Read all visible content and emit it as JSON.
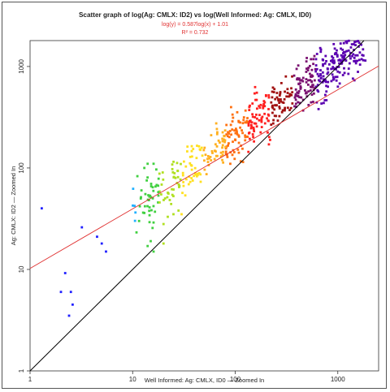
{
  "chart_data": {
    "type": "scatter",
    "title": "Scatter graph of log(Ag: CMLX: ID2) vs log(Well Informed: Ag: CMLX, ID0)",
    "xlabel": "Well Informed: Ag: CMLX, ID0 — Zoomed In",
    "ylabel": "Ag: CMLX: ID2 — Zoomed In",
    "x_scale": "log",
    "y_scale": "log",
    "xlim": [
      1,
      2500
    ],
    "ylim": [
      1,
      1800
    ],
    "x_ticks": [
      "1",
      "10",
      "100",
      "1000"
    ],
    "y_ticks": [
      "1",
      "10",
      "100",
      "1000"
    ],
    "grid": false,
    "regression": {
      "equation": "log(y) = 0.587log(x) + 1.01",
      "r_squared": "R² = 0.732",
      "slope": 0.587,
      "intercept": 1.01,
      "color": "#e03030"
    },
    "identity_line": {
      "from": [
        1,
        1
      ],
      "to": [
        1800,
        1800
      ],
      "color": "#000000"
    },
    "palette": [
      "#2020ff",
      "#20b0ff",
      "#40d040",
      "#b0e020",
      "#ffe020",
      "#ffb020",
      "#ff7010",
      "#ff2020",
      "#a01010",
      "#7a1070",
      "#5a00b0"
    ],
    "points_sample_seed": 7,
    "points": [
      [
        1.3,
        40
      ],
      [
        2.2,
        9.2
      ],
      [
        2.0,
        6.0
      ],
      [
        2.5,
        6.0
      ],
      [
        2.4,
        3.5
      ],
      [
        2.6,
        4.5
      ],
      [
        3.2,
        26
      ],
      [
        4.5,
        21
      ],
      [
        5.0,
        18
      ],
      [
        5.5,
        15
      ],
      [
        13,
        36
      ],
      [
        15,
        19
      ],
      [
        14,
        17
      ],
      [
        16,
        15
      ],
      [
        20,
        18
      ],
      [
        12,
        50
      ],
      [
        14,
        110
      ],
      [
        13,
        100
      ],
      [
        16,
        110
      ],
      [
        20,
        28
      ],
      [
        22,
        33
      ],
      [
        25,
        35
      ],
      [
        28,
        38
      ],
      [
        30,
        35
      ]
    ]
  }
}
